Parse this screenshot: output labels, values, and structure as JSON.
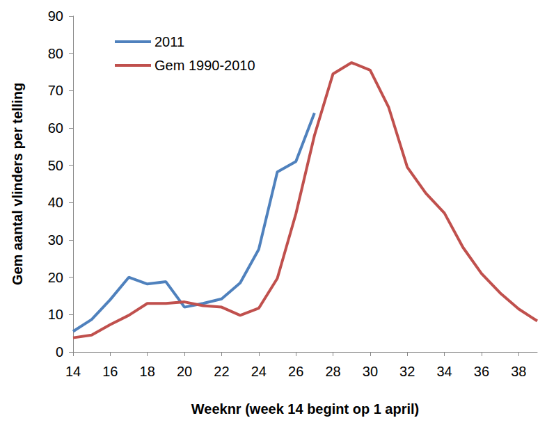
{
  "chart_data": {
    "type": "line",
    "x_label": "Weeknr (week 14 begint op 1 april)",
    "y_label": "Gem aantal vlinders per telling",
    "x": [
      14,
      15,
      16,
      17,
      18,
      19,
      20,
      21,
      22,
      23,
      24,
      25,
      26,
      27,
      28,
      29,
      30,
      31,
      32,
      33,
      34,
      35,
      36,
      37,
      38,
      39
    ],
    "series": [
      {
        "name": "2011",
        "color": "#4f81bd",
        "values": [
          5.5,
          8.7,
          14,
          20,
          18.2,
          18.8,
          12,
          13,
          14.2,
          18.5,
          27.5,
          48.2,
          51,
          64,
          null,
          null,
          null,
          null,
          null,
          null,
          null,
          null,
          null,
          null,
          null,
          null
        ]
      },
      {
        "name": "Gem 1990-2010",
        "color": "#c0504d",
        "values": [
          3.8,
          4.5,
          7.3,
          9.8,
          13,
          13,
          13.4,
          12.4,
          12,
          9.8,
          11.7,
          19.7,
          37,
          58,
          74.5,
          77.5,
          75.5,
          65.5,
          49.5,
          42.5,
          37.2,
          28,
          21,
          15.8,
          11.5,
          8.3
        ]
      }
    ],
    "xlim": [
      14,
      39
    ],
    "xticks": [
      14,
      16,
      18,
      20,
      22,
      24,
      26,
      28,
      30,
      32,
      34,
      36,
      38
    ],
    "ylim": [
      0,
      90
    ],
    "yticks": [
      0,
      10,
      20,
      30,
      40,
      50,
      60,
      70,
      80,
      90
    ],
    "grid": false,
    "legend": "upper left"
  }
}
